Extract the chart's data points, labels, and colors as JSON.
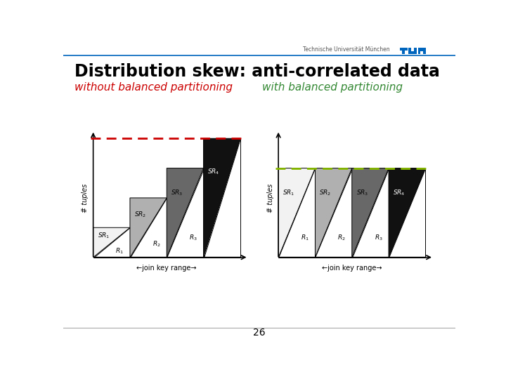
{
  "title": "Distribution skew: anti-correlated data",
  "label_left": "without balanced partitioning",
  "label_right": "with balanced partitioning",
  "label_left_color": "#cc0000",
  "label_right_color": "#338833",
  "page_number": "26",
  "tum_text": "Technische Universität München",
  "tum_color": "#0065bd",
  "background_color": "#ffffff",
  "axis_label_x": "join key range",
  "axis_label_y": "# tuples",
  "triangle_colors": [
    "#f2f2f2",
    "#b0b0b0",
    "#686868",
    "#111111"
  ],
  "dashed_line_color_left": "#cc0000",
  "dashed_line_color_right": "#88bb00",
  "header_line_color": "#0065bd",
  "bottom_line_color": "#aaaaaa"
}
